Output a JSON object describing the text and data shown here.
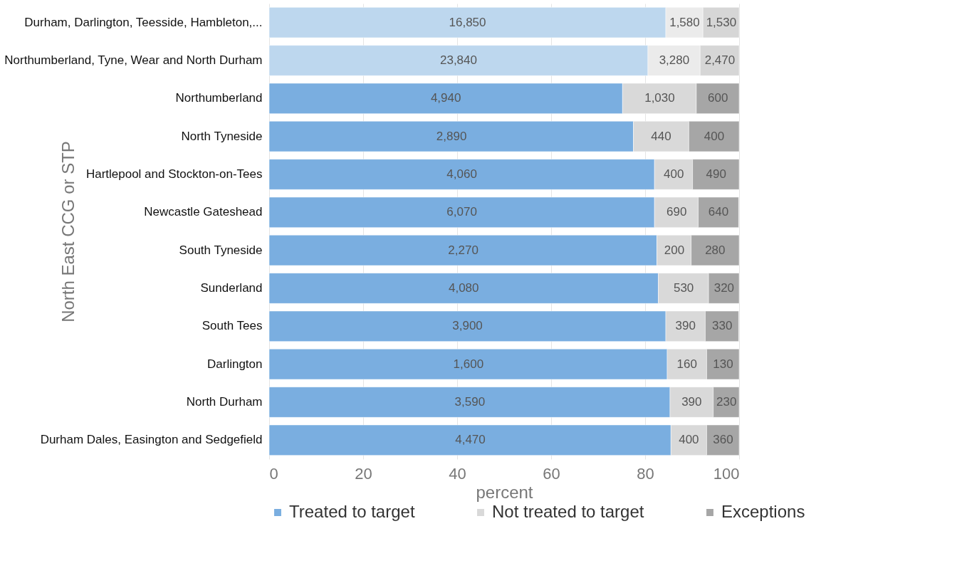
{
  "chart_data": {
    "type": "bar",
    "orientation": "horizontal",
    "stacked": true,
    "xlabel": "percent",
    "ylabel": "North East CCG or STP",
    "categories": [
      "Durham, Darlington, Teesside, Hambleton,...",
      "Northumberland, Tyne, Wear and North Durham",
      "Northumberland",
      "North Tyneside",
      "Hartlepool and Stockton-on-Tees",
      "Newcastle Gateshead",
      "South Tyneside",
      "Sunderland",
      "South Tees",
      "Darlington",
      "North Durham",
      "Durham Dales, Easington and Sedgefield"
    ],
    "series": [
      {
        "name": "Treated to target",
        "color": "#7aaee0",
        "colors": [
          "#bdd7ee",
          "#bdd7ee",
          "#7aaee0",
          "#7aaee0",
          "#7aaee0",
          "#7aaee0",
          "#7aaee0",
          "#7aaee0",
          "#7aaee0",
          "#7aaee0",
          "#7aaee0",
          "#7aaee0"
        ],
        "values": [
          84.4,
          80.6,
          75.2,
          77.5,
          82.0,
          82.0,
          82.5,
          82.8,
          84.4,
          84.7,
          85.3,
          85.5
        ]
      },
      {
        "name": "Not treated to target",
        "color": "#d9d9d9",
        "colors": [
          "#ebebeb",
          "#ebebeb",
          "#d9d9d9",
          "#d9d9d9",
          "#d9d9d9",
          "#d9d9d9",
          "#d9d9d9",
          "#d9d9d9",
          "#d9d9d9",
          "#d9d9d9",
          "#d9d9d9",
          "#d9d9d9"
        ],
        "values": [
          7.9,
          11.1,
          15.7,
          11.8,
          8.1,
          9.3,
          7.3,
          10.7,
          8.4,
          8.4,
          9.2,
          7.6
        ]
      },
      {
        "name": "Exceptions",
        "color": "#a6a6a6",
        "colors": [
          "#d6d6d6",
          "#d6d6d6",
          "#a6a6a6",
          "#a6a6a6",
          "#a6a6a6",
          "#a6a6a6",
          "#a6a6a6",
          "#a6a6a6",
          "#a6a6a6",
          "#a6a6a6",
          "#a6a6a6",
          "#a6a6a6"
        ],
        "values": [
          7.7,
          8.3,
          9.1,
          10.7,
          9.9,
          8.6,
          10.2,
          6.5,
          7.1,
          6.9,
          5.5,
          6.9
        ]
      }
    ],
    "annotations": [
      {
        "text": "16,850",
        "x": 42.2,
        "y": "Durham, Darlington, Teesside, Hambleton,..."
      },
      {
        "text": "1,580",
        "x": 88.4,
        "y": "Durham, Darlington, Teesside, Hambleton,..."
      },
      {
        "text": "1,530",
        "x": 96.2,
        "y": "Durham, Darlington, Teesside, Hambleton,..."
      },
      {
        "text": "23,840",
        "x": 40.3,
        "y": "Northumberland, Tyne, Wear and North Durham"
      },
      {
        "text": "3,280",
        "x": 86.2,
        "y": "Northumberland, Tyne, Wear and North Durham"
      },
      {
        "text": "2,470",
        "x": 95.9,
        "y": "Northumberland, Tyne, Wear and North Durham"
      },
      {
        "text": "4,940",
        "x": 37.6,
        "y": "Northumberland"
      },
      {
        "text": "1,030",
        "x": 83.1,
        "y": "Northumberland"
      },
      {
        "text": "600",
        "x": 95.5,
        "y": "Northumberland"
      },
      {
        "text": "2,890",
        "x": 38.8,
        "y": "North Tyneside"
      },
      {
        "text": "440",
        "x": 83.4,
        "y": "North Tyneside"
      },
      {
        "text": "400",
        "x": 94.7,
        "y": "North Tyneside"
      },
      {
        "text": "4,060",
        "x": 41.0,
        "y": "Hartlepool and Stockton-on-Tees"
      },
      {
        "text": "400",
        "x": 86.1,
        "y": "Hartlepool and Stockton-on-Tees"
      },
      {
        "text": "490",
        "x": 95.1,
        "y": "Hartlepool and Stockton-on-Tees"
      },
      {
        "text": "6,070",
        "x": 41.0,
        "y": "Newcastle Gateshead"
      },
      {
        "text": "690",
        "x": 86.7,
        "y": "Newcastle Gateshead"
      },
      {
        "text": "640",
        "x": 95.6,
        "y": "Newcastle Gateshead"
      },
      {
        "text": "2,270",
        "x": 41.3,
        "y": "South Tyneside"
      },
      {
        "text": "200",
        "x": 86.2,
        "y": "South Tyneside"
      },
      {
        "text": "280",
        "x": 94.9,
        "y": "South Tyneside"
      },
      {
        "text": "4,080",
        "x": 41.4,
        "y": "Sunderland"
      },
      {
        "text": "530",
        "x": 88.2,
        "y": "Sunderland"
      },
      {
        "text": "320",
        "x": 96.8,
        "y": "Sunderland"
      },
      {
        "text": "3,900",
        "x": 42.2,
        "y": "South Tees"
      },
      {
        "text": "390",
        "x": 88.6,
        "y": "South Tees"
      },
      {
        "text": "330",
        "x": 96.4,
        "y": "South Tees"
      },
      {
        "text": "1,600",
        "x": 42.4,
        "y": "Darlington"
      },
      {
        "text": "160",
        "x": 88.9,
        "y": "Darlington"
      },
      {
        "text": "130",
        "x": 96.6,
        "y": "Darlington"
      },
      {
        "text": "3,590",
        "x": 42.7,
        "y": "North Durham"
      },
      {
        "text": "390",
        "x": 89.9,
        "y": "North Durham"
      },
      {
        "text": "230",
        "x": 97.3,
        "y": "North Durham"
      },
      {
        "text": "4,470",
        "x": 42.8,
        "y": "Durham Dales, Easington and Sedgefield"
      },
      {
        "text": "400",
        "x": 89.3,
        "y": "Durham Dales, Easington and Sedgefield"
      },
      {
        "text": "360",
        "x": 96.6,
        "y": "Durham Dales, Easington and Sedgefield"
      }
    ],
    "xlim": [
      0,
      100
    ],
    "xticks": [
      0,
      20,
      40,
      60,
      80,
      100
    ],
    "grid": "x",
    "legend": "bottom"
  }
}
